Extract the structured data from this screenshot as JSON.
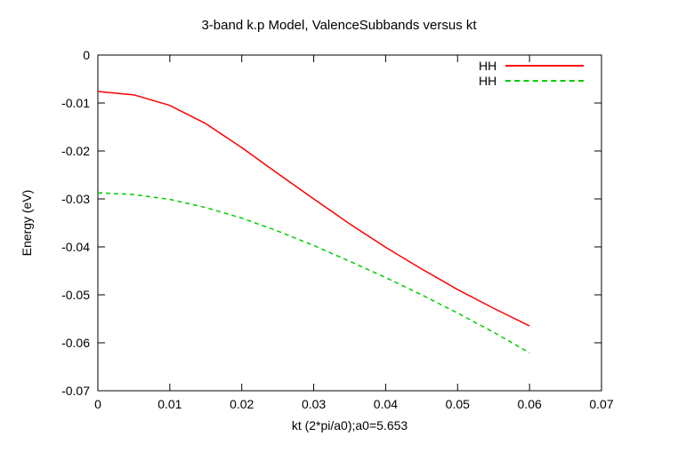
{
  "chart_data": {
    "type": "line",
    "title": "3-band k.p Model, ValenceSubbands versus kt",
    "xlabel": "kt (2*pi/a0);a0=5.653",
    "ylabel": "Energy (eV)",
    "xlim": [
      0,
      0.07
    ],
    "ylim": [
      -0.07,
      0
    ],
    "xticks": [
      0,
      0.01,
      0.02,
      0.03,
      0.04,
      0.05,
      0.06,
      0.07
    ],
    "yticks": [
      0,
      -0.01,
      -0.02,
      -0.03,
      -0.04,
      -0.05,
      -0.06,
      -0.07
    ],
    "grid": false,
    "legend_position": "top-right",
    "background": "#ffffff",
    "frame_color": "#000000",
    "series": [
      {
        "name": "HH",
        "color": "#ff0000",
        "style": "solid",
        "x": [
          0,
          0.005,
          0.01,
          0.015,
          0.02,
          0.025,
          0.03,
          0.035,
          0.04,
          0.045,
          0.05,
          0.055,
          0.06
        ],
        "y": [
          -0.0076,
          -0.0083,
          -0.0105,
          -0.0143,
          -0.0193,
          -0.0247,
          -0.03,
          -0.0352,
          -0.0401,
          -0.0446,
          -0.0489,
          -0.0528,
          -0.0565
        ]
      },
      {
        "name": "HH",
        "color": "#00cc00",
        "style": "dashed",
        "x": [
          0,
          0.005,
          0.01,
          0.015,
          0.02,
          0.025,
          0.03,
          0.035,
          0.04,
          0.045,
          0.05,
          0.055,
          0.06
        ],
        "y": [
          -0.0287,
          -0.0291,
          -0.0301,
          -0.0318,
          -0.034,
          -0.0367,
          -0.0397,
          -0.043,
          -0.0464,
          -0.05,
          -0.0538,
          -0.0578,
          -0.0621
        ]
      }
    ]
  }
}
